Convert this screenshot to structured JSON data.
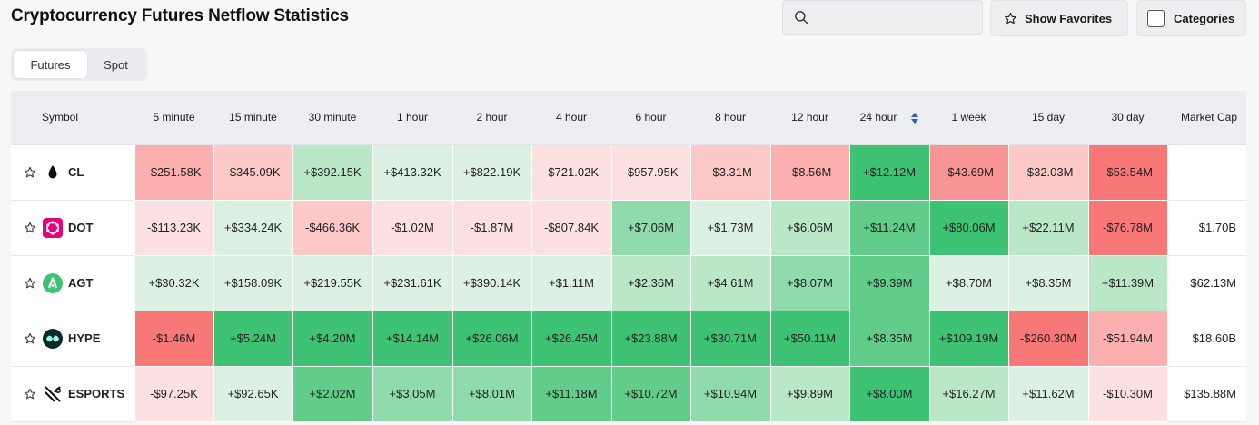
{
  "header": {
    "title": "Cryptocurrency Futures Netflow Statistics",
    "search_placeholder": "",
    "favorites_label": "Show Favorites",
    "categories_label": "Categories"
  },
  "tabs": [
    {
      "label": "Futures",
      "active": true
    },
    {
      "label": "Spot",
      "active": false
    }
  ],
  "table": {
    "headers": {
      "symbol": "Symbol",
      "periods": [
        "5 minute",
        "15 minute",
        "30 minute",
        "1 hour",
        "2 hour",
        "4 hour",
        "6 hour",
        "8 hour",
        "12 hour",
        "24 hour",
        "1 week",
        "15 day",
        "30 day"
      ],
      "market_cap": "Market Cap"
    },
    "sorted_column": "24 hour",
    "rows": [
      {
        "symbol": "CL",
        "icon": "cl-logo-icon",
        "logo_color": "#ffffff",
        "values": [
          "-$251.58K",
          "-$345.09K",
          "+$392.15K",
          "+$413.32K",
          "+$822.19K",
          "-$721.02K",
          "-$957.95K",
          "-$3.31M",
          "-$8.56M",
          "+$12.12M",
          "-$43.69M",
          "-$32.03M",
          "-$53.54M"
        ],
        "levels": [
          -3,
          -2,
          2,
          1,
          1,
          -1,
          -1,
          -2,
          -3,
          5,
          -4,
          -2,
          -5
        ],
        "market_cap": ""
      },
      {
        "symbol": "DOT",
        "icon": "dot-logo-icon",
        "logo_color": "#e6007a",
        "values": [
          "-$113.23K",
          "+$334.24K",
          "-$466.36K",
          "-$1.02M",
          "-$1.87M",
          "-$807.84K",
          "+$7.06M",
          "+$1.73M",
          "+$6.06M",
          "+$11.24M",
          "+$80.06M",
          "+$22.11M",
          "-$76.78M"
        ],
        "levels": [
          -1,
          1,
          -2,
          -1,
          -1,
          -1,
          3,
          1,
          2,
          4,
          5,
          2,
          -5
        ],
        "market_cap": "$1.70B"
      },
      {
        "symbol": "AGT",
        "icon": "agt-logo-icon",
        "logo_color": "#3ec375",
        "values": [
          "+$30.32K",
          "+$158.09K",
          "+$219.55K",
          "+$231.61K",
          "+$390.14K",
          "+$1.11M",
          "+$2.36M",
          "+$4.61M",
          "+$8.07M",
          "+$9.39M",
          "+$8.70M",
          "+$8.35M",
          "+$11.39M"
        ],
        "levels": [
          1,
          1,
          1,
          1,
          1,
          1,
          2,
          2,
          3,
          4,
          1,
          1,
          2
        ],
        "market_cap": "$62.13M"
      },
      {
        "symbol": "HYPE",
        "icon": "hype-logo-icon",
        "logo_color": "#0b2b2b",
        "values": [
          "-$1.46M",
          "+$5.24M",
          "+$4.20M",
          "+$14.14M",
          "+$26.06M",
          "+$26.45M",
          "+$23.88M",
          "+$30.71M",
          "+$50.11M",
          "+$8.35M",
          "+$109.19M",
          "-$260.30M",
          "-$51.94M"
        ],
        "levels": [
          -5,
          5,
          5,
          5,
          5,
          5,
          5,
          5,
          5,
          4,
          5,
          -5,
          -3
        ],
        "market_cap": "$18.60B"
      },
      {
        "symbol": "ESPORTS",
        "icon": "esports-logo-icon",
        "logo_color": "#ffffff",
        "values": [
          "-$97.25K",
          "+$92.65K",
          "+$2.02M",
          "+$3.05M",
          "+$8.01M",
          "+$11.18M",
          "+$10.72M",
          "+$10.94M",
          "+$9.89M",
          "+$8.00M",
          "+$16.27M",
          "+$11.62M",
          "-$10.30M"
        ],
        "levels": [
          -1,
          1,
          4,
          3,
          3,
          4,
          4,
          3,
          2,
          5,
          2,
          1,
          -1
        ],
        "market_cap": "$135.88M"
      }
    ]
  }
}
